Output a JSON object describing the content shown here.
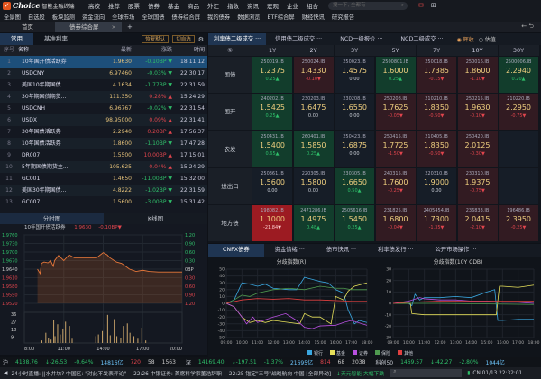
{
  "app": {
    "brand": "Choice",
    "subtitle": "智能金融终端",
    "search_placeholder": "搜一下, 全都有"
  },
  "menu": [
    "高校",
    "推荐",
    "股票",
    "债券",
    "基金",
    "商品",
    "外汇",
    "指数",
    "资讯",
    "宏观",
    "企业",
    "组合"
  ],
  "toolbar": [
    "全景图",
    "自选股",
    "板块监测",
    "资金流向",
    "全球市场",
    "全球国债",
    "债券综合屏",
    "我的债券",
    "数据浏览",
    "ETF综合屏",
    "财经快讯",
    "研究报告"
  ],
  "tabs": [
    {
      "label": "首页"
    },
    {
      "label": "债券综合屏"
    }
  ],
  "left": {
    "subtabs": [
      "常用",
      "基准利率"
    ],
    "buttons": [
      "恢复默认",
      "切自选"
    ],
    "headers": [
      "序号",
      "名称",
      "最新",
      "涨跌",
      "时间"
    ],
    "rows": [
      {
        "no": "1",
        "name": "10年国开债活跃券",
        "price": "1.9630",
        "chg": "-0.10BP",
        "dir": "down",
        "time": "18:11:12"
      },
      {
        "no": "2",
        "name": "USDCNY",
        "price": "6.97460",
        "chg": "-0.03%",
        "dir": "down",
        "time": "22:30:17"
      },
      {
        "no": "3",
        "name": "美国10年期国债...",
        "price": "4.1634",
        "chg": "-1.77BP",
        "dir": "down",
        "time": "22:31:59"
      },
      {
        "no": "4",
        "name": "30年期国债期货...",
        "price": "111.350",
        "chg": "0.28%",
        "dir": "up",
        "time": "15:24:29"
      },
      {
        "no": "5",
        "name": "USDCNH",
        "price": "6.96767",
        "chg": "-0.02%",
        "dir": "down",
        "time": "22:31:54"
      },
      {
        "no": "6",
        "name": "USDX",
        "price": "98.95000",
        "chg": "0.09%",
        "dir": "up",
        "time": "22:31:41"
      },
      {
        "no": "7",
        "name": "30年国债活跃券",
        "price": "2.2940",
        "chg": "0.20BP",
        "dir": "up",
        "time": "17:56:37"
      },
      {
        "no": "8",
        "name": "10年国债活跃券",
        "price": "1.8600",
        "chg": "-1.10BP",
        "dir": "down",
        "time": "17:47:28"
      },
      {
        "no": "9",
        "name": "DR007",
        "price": "1.5500",
        "chg": "10.00BP",
        "dir": "up",
        "time": "17:15:01"
      },
      {
        "no": "10",
        "name": "5年期国债期货主...",
        "price": "105.625",
        "chg": "0.04%",
        "dir": "up",
        "time": "15:24:29"
      },
      {
        "no": "11",
        "name": "GC001",
        "price": "1.4650",
        "chg": "-11.00BP",
        "dir": "down",
        "time": "15:32:00"
      },
      {
        "no": "12",
        "name": "美国30年期国债...",
        "price": "4.8222",
        "chg": "-1.02BP",
        "dir": "down",
        "time": "22:31:59"
      },
      {
        "no": "13",
        "name": "GC007",
        "price": "1.5600",
        "chg": "-3.00BP",
        "dir": "down",
        "time": "15:31:42"
      }
    ],
    "chart_tabs": [
      "分时图",
      "K线图"
    ],
    "chart_info": {
      "name": "10年国开债活跃券",
      "price": "1.9630",
      "chg": "-0.10BP▼"
    }
  },
  "right": {
    "tabs": [
      "利率债二级成交 ···",
      "信用债二级成交 ···",
      "NCD一级报价 ···",
      "NCD二级成交 ···"
    ],
    "radio": [
      {
        "label": "辉收",
        "selected": true
      },
      {
        "label": "估值",
        "selected": false
      }
    ],
    "corner": "⑤",
    "tenors": [
      "1Y",
      "2Y",
      "3Y",
      "5Y",
      "7Y",
      "10Y",
      "30Y"
    ],
    "rows": [
      {
        "label": "国债",
        "cells": [
          [
            "250019.IB",
            "1.2375",
            "0.25▲",
            "g"
          ],
          [
            "250024.IB",
            "1.4330",
            "-0.10▼",
            "r"
          ],
          [
            "250023.IB",
            "1.4575",
            "0.00",
            "n"
          ],
          [
            "2500801.IB",
            "1.6000",
            "0.25▲",
            "g"
          ],
          [
            "250018.IB",
            "1.7385",
            "-0.15▼",
            "r"
          ],
          [
            "250016.IB",
            "1.8600",
            "-1.10▼",
            "r"
          ],
          [
            "2500006.IB",
            "2.2940",
            "0.20▲",
            "g"
          ]
        ]
      },
      {
        "label": "国开",
        "cells": [
          [
            "240202.IB",
            "1.5425",
            "0.25▲",
            "g"
          ],
          [
            "230203.IB",
            "1.6475",
            "0.00",
            "n"
          ],
          [
            "230208.IB",
            "1.6550",
            "0.00",
            "n"
          ],
          [
            "250208.IB",
            "1.7625",
            "-0.05▼",
            "r"
          ],
          [
            "210210.IB",
            "1.8350",
            "-0.50▼",
            "r"
          ],
          [
            "250215.IB",
            "1.9630",
            "-0.10▼",
            "r"
          ],
          [
            "210220.IB",
            "2.2950",
            "-0.75▼",
            "r"
          ]
        ]
      },
      {
        "label": "农发",
        "cells": [
          [
            "250431.IB",
            "1.5400",
            "0.65▲",
            "g"
          ],
          [
            "260401.IB",
            "1.5850",
            "0.25▲",
            "g"
          ],
          [
            "250423.IB",
            "1.6875",
            "0.00",
            "n"
          ],
          [
            "250415.IB",
            "1.7725",
            "-1.50▼",
            "r"
          ],
          [
            "210405.IB",
            "1.8350",
            "-0.50▼",
            "r"
          ],
          [
            "250420.IB",
            "2.0125",
            "-0.30▼",
            "r"
          ],
          [
            "",
            "",
            "",
            "n"
          ]
        ]
      },
      {
        "label": "进出口",
        "cells": [
          [
            "250361.IB",
            "1.5600",
            "0.00",
            "n"
          ],
          [
            "220305.IB",
            "1.5800",
            "0.00",
            "n"
          ],
          [
            "230305.IB",
            "1.6650",
            "0.50▲",
            "g"
          ],
          [
            "240315.IB",
            "1.7600",
            "-0.25▼",
            "r"
          ],
          [
            "220310.IB",
            "1.9000",
            "0.00",
            "n"
          ],
          [
            "230310.IB",
            "1.9375",
            "-0.75▼",
            "r"
          ],
          [
            "",
            "",
            "",
            "n"
          ]
        ]
      },
      {
        "label": "地方债",
        "cells": [
          [
            "198082.IB",
            "1.1000",
            "-21.84▼",
            "R"
          ],
          [
            "2471286.IB",
            "1.4975",
            "0.48▲",
            "g"
          ],
          [
            "2505616.IB",
            "1.5450",
            "0.25▲",
            "g"
          ],
          [
            "231825.IB",
            "1.6800",
            "-0.04▼",
            "r"
          ],
          [
            "2405454.IB",
            "1.7300",
            "-1.35▼",
            "r"
          ],
          [
            "236833.IB",
            "2.0415",
            "-2.10▼",
            "r"
          ],
          [
            "196486.IB",
            "2.3950",
            "-0.25▼",
            "r"
          ]
        ]
      }
    ],
    "colors": {
      "g": "#123d2c",
      "r": "#321b22",
      "n": "#161d27",
      "R": "#9c1b22"
    }
  },
  "bottom": {
    "tabs": [
      "CNFX债券",
      "资金情绪 ···",
      "债市快讯 ···",
      "利率债发行 ···",
      "公开市场操作 ···"
    ]
  },
  "chart_data": [
    {
      "type": "line",
      "title": "",
      "name": "10年国开债活跃券 分时图",
      "xlim": [
        "8:00",
        "20:00"
      ],
      "xticks": [
        "8:00",
        "11:00",
        "14:00",
        "17:00",
        "20:00"
      ],
      "ylim": [
        1.952,
        1.976
      ],
      "yticks": [
        "1.9760",
        "1.9730",
        "1.9700",
        "1.9670",
        "1.9640",
        "1.9610",
        "1.9580",
        "1.9550",
        "1.9520"
      ],
      "right_ticks": [
        "1.20",
        "0.90",
        "0.60",
        "0.30",
        "0BP",
        "0.30",
        "0.60",
        "0.90",
        "1.20"
      ],
      "x": [
        9.0,
        9.2,
        9.3,
        9.5,
        9.8,
        10.0,
        10.2,
        10.3,
        10.6,
        11.0,
        11.4,
        11.8,
        13.5,
        14.0,
        14.3,
        14.5,
        15.0,
        15.4,
        16.0,
        16.5,
        17.0,
        17.5,
        18.2,
        20.0
      ],
      "y": [
        1.964,
        1.9625,
        1.966,
        1.9665,
        1.9662,
        1.967,
        1.965,
        1.967,
        1.9688,
        1.967,
        1.969,
        1.968,
        1.968,
        1.9698,
        1.969,
        1.968,
        1.9665,
        1.966,
        1.964,
        1.9632,
        1.9636,
        1.9632,
        1.963,
        1.963
      ],
      "volume": {
        "yticks": [
          "36",
          "27",
          "18",
          "9"
        ],
        "ylim": [
          0,
          36
        ],
        "x": [
          9.3,
          9.6,
          9.8,
          10.0,
          10.2,
          10.3,
          10.5,
          10.7,
          10.9,
          11.1,
          11.4,
          11.6,
          13.4,
          13.6,
          13.9,
          14.1,
          14.3,
          14.5,
          14.8,
          15.0,
          15.3,
          15.5,
          15.8,
          16.0,
          16.3,
          16.6,
          16.9,
          17.2
        ],
        "y": [
          3,
          12,
          6,
          4,
          27,
          8,
          22,
          10,
          17,
          25,
          20,
          5,
          8,
          10,
          14,
          22,
          33,
          9,
          28,
          8,
          6,
          20,
          23,
          12,
          8,
          5,
          18,
          3
        ]
      }
    },
    {
      "type": "line",
      "title": "分歧指数(R)",
      "xticks": [
        "09:00",
        "10:00",
        "11:00",
        "12:00",
        "13:00",
        "14:00",
        "15:00",
        "16:00",
        "17:00",
        "18:00"
      ],
      "ylim": [
        -50,
        50
      ],
      "yticks": [
        50,
        40,
        30,
        20,
        10,
        0,
        -10,
        -20,
        -30,
        -40,
        -50
      ],
      "series": [
        {
          "name": "银行",
          "color": "#3aa7e0",
          "x": [
            9,
            9.5,
            10,
            10.5,
            11,
            11.5,
            12,
            13,
            13.5,
            14,
            14.5,
            15,
            15.5,
            16,
            16.5,
            16.8,
            17.2,
            17.5,
            18
          ],
          "y": [
            0,
            5,
            30,
            28,
            25,
            28,
            22,
            20,
            20,
            38,
            35,
            32,
            30,
            20,
            15,
            -10,
            -30,
            -25,
            -28
          ]
        },
        {
          "name": "基金",
          "color": "#e6e05a",
          "x": [
            9,
            9.5,
            10,
            10.5,
            11,
            11.5,
            12,
            13,
            13.7,
            14,
            14.5,
            15,
            15.7,
            16,
            16.5,
            16.8,
            17.2,
            18
          ],
          "y": [
            0,
            -5,
            -20,
            -28,
            -25,
            -28,
            -25,
            -28,
            -30,
            -15,
            -20,
            -20,
            -30,
            10,
            5,
            18,
            25,
            30
          ]
        },
        {
          "name": "证券",
          "color": "#b84fe0",
          "x": [
            9,
            9.5,
            10,
            10.3,
            10.7,
            11,
            12,
            12.8,
            13.5,
            14,
            14.5,
            15,
            16,
            16.5,
            17,
            18
          ],
          "y": [
            0,
            -5,
            -20,
            -30,
            -20,
            -28,
            -20,
            -15,
            -25,
            -35,
            -37,
            -33,
            -32,
            -28,
            -25,
            -32
          ]
        },
        {
          "name": "保险",
          "color": "#4f9a4f",
          "x": [
            9,
            9.5,
            10,
            10.5,
            11,
            12,
            13,
            14,
            15,
            16,
            16.5,
            17,
            18
          ],
          "y": [
            0,
            5,
            12,
            10,
            15,
            20,
            22,
            20,
            25,
            22,
            22,
            20,
            20
          ]
        },
        {
          "name": "其他",
          "color": "#e04040",
          "x": [
            9,
            10,
            11,
            12,
            13,
            14,
            15,
            16,
            17,
            18
          ],
          "y": [
            0,
            5,
            7,
            6,
            7,
            5,
            5,
            4,
            3,
            3
          ]
        }
      ]
    },
    {
      "type": "line",
      "title": "分歧指数(10Y CDB)",
      "xticks": [
        "09:00",
        "10:00",
        "11:00",
        "12:00",
        "13:00",
        "14:00",
        "15:00",
        "16:00",
        "17:00",
        "18:00"
      ],
      "ylim": [
        -30,
        30
      ],
      "yticks": [
        30,
        20,
        10,
        0,
        -10,
        -20,
        -30
      ],
      "series": [
        {
          "name": "银行",
          "color": "#3aa7e0",
          "x": [
            9,
            10,
            10.2,
            10.4,
            10.7,
            11,
            12,
            13,
            14,
            15,
            15.5,
            15.7,
            16,
            17,
            18
          ],
          "y": [
            0,
            0,
            -2,
            8,
            3,
            5,
            5,
            6,
            5,
            10,
            12,
            -15,
            -15,
            -14,
            -14
          ]
        },
        {
          "name": "基金",
          "color": "#e6e05a",
          "x": [
            9,
            10.1,
            10.2,
            11,
            12,
            13,
            14,
            15,
            15.6,
            15.8,
            16,
            17,
            18
          ],
          "y": [
            0,
            0,
            -9,
            -10,
            -10,
            -10,
            -10,
            -10,
            -10,
            15,
            15,
            14,
            16
          ]
        },
        {
          "name": "证券",
          "color": "#b84fe0",
          "x": [
            9,
            10,
            10.7,
            11,
            12,
            13,
            14,
            15,
            16,
            17,
            18
          ],
          "y": [
            0,
            2,
            5,
            4,
            3,
            3,
            2,
            2,
            1,
            1,
            0
          ]
        },
        {
          "name": "保险",
          "color": "#4f9a4f",
          "x": [
            9,
            12,
            15,
            18
          ],
          "y": [
            0,
            0,
            -0.5,
            -1
          ]
        },
        {
          "name": "其他",
          "color": "#e04040",
          "x": [
            9,
            10,
            12,
            15,
            18
          ],
          "y": [
            0,
            1,
            2,
            2,
            2
          ]
        }
      ]
    }
  ],
  "status": {
    "sh_label": "沪",
    "sh": [
      "4138.76",
      "↓-26.53",
      "-0.64%",
      "14816亿",
      "720",
      "58",
      "1563"
    ],
    "sz_label": "深",
    "sz": [
      "14169.40",
      "↓-197.51",
      "-1.37%",
      "21695亿",
      "814",
      "68",
      "2038"
    ],
    "kc_label": "科创50",
    "kc": [
      "1469.57",
      "↓-42.27",
      "-2.80%",
      "1044亿"
    ]
  },
  "news": {
    "items": [
      "24小时直播: ||水井坊? 中国区: \"对此不发表评论\"",
      "22:26 中银证券: 首席科学家董浩辞职",
      "22:25 锚定\"三号\"战略航向 中国  [全部异动]"
    ],
    "alert": "↓天元智能 大幅下跌",
    "clock": "CN 01/13 22:32:01"
  }
}
